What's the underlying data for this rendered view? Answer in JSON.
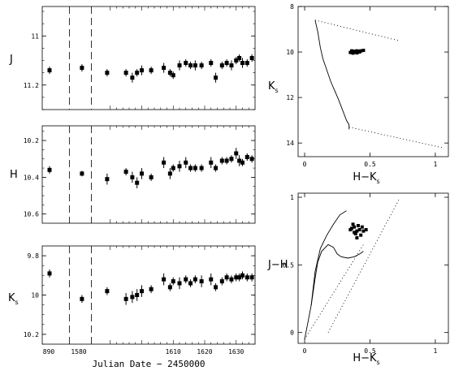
{
  "chart_data": [
    {
      "type": "scatter",
      "title": "",
      "ylabel": "J",
      "xlim": [
        888,
        1635
      ],
      "ylim": [
        11.3,
        10.88
      ],
      "y_inverted": true,
      "yticks": [
        11.0,
        11.2
      ],
      "ytick_labels": [
        "11",
        "11.2"
      ],
      "vlines_dashed": [
        1577,
        1584
      ],
      "points": [
        {
          "x": 891,
          "y": 11.14,
          "err": 0.015
        },
        {
          "x": 1581,
          "y": 11.13,
          "err": 0.015
        },
        {
          "x": 1589,
          "y": 11.15,
          "err": 0.015
        },
        {
          "x": 1595,
          "y": 11.15,
          "err": 0.015
        },
        {
          "x": 1597,
          "y": 11.17,
          "err": 0.02
        },
        {
          "x": 1598.5,
          "y": 11.15,
          "err": 0.015
        },
        {
          "x": 1600,
          "y": 11.14,
          "err": 0.02
        },
        {
          "x": 1603,
          "y": 11.14,
          "err": 0.015
        },
        {
          "x": 1607,
          "y": 11.13,
          "err": 0.02
        },
        {
          "x": 1609,
          "y": 11.15,
          "err": 0.015
        },
        {
          "x": 1610,
          "y": 11.16,
          "err": 0.015
        },
        {
          "x": 1612,
          "y": 11.12,
          "err": 0.02
        },
        {
          "x": 1614,
          "y": 11.11,
          "err": 0.015
        },
        {
          "x": 1615.5,
          "y": 11.12,
          "err": 0.015
        },
        {
          "x": 1617,
          "y": 11.12,
          "err": 0.02
        },
        {
          "x": 1619,
          "y": 11.12,
          "err": 0.015
        },
        {
          "x": 1622,
          "y": 11.11,
          "err": 0.015
        },
        {
          "x": 1623.5,
          "y": 11.17,
          "err": 0.02
        },
        {
          "x": 1625.5,
          "y": 11.12,
          "err": 0.015
        },
        {
          "x": 1627,
          "y": 11.11,
          "err": 0.015
        },
        {
          "x": 1628.5,
          "y": 11.12,
          "err": 0.02
        },
        {
          "x": 1630,
          "y": 11.1,
          "err": 0.015
        },
        {
          "x": 1631,
          "y": 11.09,
          "err": 0.015
        },
        {
          "x": 1632,
          "y": 11.11,
          "err": 0.02
        },
        {
          "x": 1633.5,
          "y": 11.11,
          "err": 0.015
        },
        {
          "x": 1635,
          "y": 11.09,
          "err": 0.015
        }
      ]
    },
    {
      "type": "scatter",
      "title": "",
      "ylabel": "H",
      "xlim": [
        888,
        1635
      ],
      "ylim": [
        10.65,
        10.12
      ],
      "y_inverted": true,
      "yticks": [
        10.2,
        10.4,
        10.6
      ],
      "ytick_labels": [
        "10.2",
        "10.4",
        "10.6"
      ],
      "vlines_dashed": [
        1577,
        1584
      ],
      "points": [
        {
          "x": 891,
          "y": 10.36,
          "err": 0.02
        },
        {
          "x": 1581,
          "y": 10.38,
          "err": 0.015
        },
        {
          "x": 1589,
          "y": 10.41,
          "err": 0.03
        },
        {
          "x": 1595,
          "y": 10.37,
          "err": 0.02
        },
        {
          "x": 1597,
          "y": 10.4,
          "err": 0.03
        },
        {
          "x": 1598.5,
          "y": 10.43,
          "err": 0.03
        },
        {
          "x": 1600,
          "y": 10.38,
          "err": 0.03
        },
        {
          "x": 1603,
          "y": 10.4,
          "err": 0.02
        },
        {
          "x": 1607,
          "y": 10.32,
          "err": 0.03
        },
        {
          "x": 1609,
          "y": 10.38,
          "err": 0.03
        },
        {
          "x": 1610,
          "y": 10.35,
          "err": 0.02
        },
        {
          "x": 1612,
          "y": 10.34,
          "err": 0.03
        },
        {
          "x": 1614,
          "y": 10.32,
          "err": 0.03
        },
        {
          "x": 1615.5,
          "y": 10.35,
          "err": 0.02
        },
        {
          "x": 1617,
          "y": 10.35,
          "err": 0.02
        },
        {
          "x": 1619,
          "y": 10.35,
          "err": 0.02
        },
        {
          "x": 1622,
          "y": 10.32,
          "err": 0.03
        },
        {
          "x": 1623.5,
          "y": 10.35,
          "err": 0.02
        },
        {
          "x": 1625.5,
          "y": 10.31,
          "err": 0.02
        },
        {
          "x": 1627,
          "y": 10.31,
          "err": 0.02
        },
        {
          "x": 1628.5,
          "y": 10.3,
          "err": 0.02
        },
        {
          "x": 1630,
          "y": 10.27,
          "err": 0.03
        },
        {
          "x": 1631,
          "y": 10.31,
          "err": 0.03
        },
        {
          "x": 1632,
          "y": 10.32,
          "err": 0.02
        },
        {
          "x": 1633.5,
          "y": 10.29,
          "err": 0.02
        },
        {
          "x": 1635,
          "y": 10.3,
          "err": 0.02
        }
      ]
    },
    {
      "type": "scatter",
      "title": "",
      "ylabel": "K",
      "ylabel_sub": "s",
      "xlabel": "Julian Date − 2450000",
      "xlim": [
        888,
        1635
      ],
      "ylim": [
        10.25,
        9.75
      ],
      "y_inverted": true,
      "yticks": [
        9.8,
        10.0,
        10.2
      ],
      "ytick_labels": [
        "9.8",
        "10",
        "10.2"
      ],
      "xticks": [
        890,
        1580,
        1610,
        1620,
        1630
      ],
      "xtick_labels": [
        "890",
        "1580",
        "1610",
        "1620",
        "1630"
      ],
      "vlines_dashed": [
        1577,
        1584
      ],
      "points": [
        {
          "x": 891,
          "y": 9.89,
          "err": 0.02
        },
        {
          "x": 1581,
          "y": 10.02,
          "err": 0.02
        },
        {
          "x": 1589,
          "y": 9.98,
          "err": 0.02
        },
        {
          "x": 1595,
          "y": 10.02,
          "err": 0.03
        },
        {
          "x": 1597,
          "y": 10.01,
          "err": 0.03
        },
        {
          "x": 1598.5,
          "y": 10.0,
          "err": 0.03
        },
        {
          "x": 1600,
          "y": 9.98,
          "err": 0.03
        },
        {
          "x": 1603,
          "y": 9.97,
          "err": 0.02
        },
        {
          "x": 1607,
          "y": 9.92,
          "err": 0.03
        },
        {
          "x": 1609,
          "y": 9.96,
          "err": 0.02
        },
        {
          "x": 1610,
          "y": 9.93,
          "err": 0.02
        },
        {
          "x": 1612,
          "y": 9.94,
          "err": 0.03
        },
        {
          "x": 1614,
          "y": 9.92,
          "err": 0.02
        },
        {
          "x": 1615.5,
          "y": 9.94,
          "err": 0.02
        },
        {
          "x": 1617,
          "y": 9.92,
          "err": 0.02
        },
        {
          "x": 1619,
          "y": 9.93,
          "err": 0.03
        },
        {
          "x": 1622,
          "y": 9.92,
          "err": 0.03
        },
        {
          "x": 1623.5,
          "y": 9.96,
          "err": 0.02
        },
        {
          "x": 1625.5,
          "y": 9.93,
          "err": 0.02
        },
        {
          "x": 1627,
          "y": 9.91,
          "err": 0.02
        },
        {
          "x": 1628.5,
          "y": 9.92,
          "err": 0.02
        },
        {
          "x": 1630,
          "y": 9.91,
          "err": 0.02
        },
        {
          "x": 1631,
          "y": 9.91,
          "err": 0.02
        },
        {
          "x": 1632,
          "y": 9.9,
          "err": 0.02
        },
        {
          "x": 1633.5,
          "y": 9.91,
          "err": 0.02
        },
        {
          "x": 1635,
          "y": 9.91,
          "err": 0.02
        }
      ]
    },
    {
      "type": "scatter",
      "title": "",
      "ylabel": "K",
      "ylabel_sub": "s",
      "xlabel": "H−K",
      "xlabel_sub": "s",
      "xlim": [
        -0.05,
        1.1
      ],
      "ylim": [
        14.6,
        8
      ],
      "y_inverted": true,
      "xticks": [
        0,
        0.5,
        1
      ],
      "xtick_labels": [
        "0",
        "0.5",
        "1"
      ],
      "yticks": [
        8,
        10,
        12,
        14
      ],
      "ytick_labels": [
        "8",
        "10",
        "12",
        "14"
      ],
      "isochrone": [
        [
          0.08,
          8.6
        ],
        [
          0.1,
          9.1
        ],
        [
          0.12,
          9.8
        ],
        [
          0.14,
          10.3
        ],
        [
          0.17,
          10.8
        ],
        [
          0.2,
          11.3
        ],
        [
          0.23,
          11.7
        ],
        [
          0.26,
          12.1
        ],
        [
          0.28,
          12.4
        ],
        [
          0.3,
          12.7
        ],
        [
          0.32,
          13.0
        ],
        [
          0.34,
          13.2
        ],
        [
          0.34,
          13.4
        ]
      ],
      "reddening_vectors": [
        [
          [
            0.08,
            8.6
          ],
          [
            0.72,
            9.5
          ]
        ],
        [
          [
            0.34,
            13.3
          ],
          [
            1.05,
            14.2
          ]
        ]
      ],
      "points": [
        {
          "x": 0.36,
          "y": 9.95
        },
        {
          "x": 0.38,
          "y": 10.0
        },
        {
          "x": 0.4,
          "y": 9.95
        },
        {
          "x": 0.42,
          "y": 10.0
        },
        {
          "x": 0.37,
          "y": 10.05
        },
        {
          "x": 0.39,
          "y": 10.0
        },
        {
          "x": 0.41,
          "y": 9.97
        },
        {
          "x": 0.35,
          "y": 10.02
        },
        {
          "x": 0.43,
          "y": 9.95
        },
        {
          "x": 0.45,
          "y": 9.93
        },
        {
          "x": 0.38,
          "y": 9.97
        },
        {
          "x": 0.4,
          "y": 10.04
        }
      ]
    },
    {
      "type": "scatter",
      "title": "",
      "ylabel": "J−H",
      "xlabel": "H−K",
      "xlabel_sub": "s",
      "xlim": [
        -0.05,
        1.1
      ],
      "ylim": [
        -0.08,
        1.03
      ],
      "xticks": [
        0,
        0.5,
        1
      ],
      "xtick_labels": [
        "0",
        "0.5",
        "1"
      ],
      "yticks": [
        0,
        0.5,
        1
      ],
      "ytick_labels": [
        "0",
        "0.5",
        "1"
      ],
      "main_sequence": [
        [
          0.0,
          -0.05
        ],
        [
          0.02,
          0.05
        ],
        [
          0.05,
          0.2
        ],
        [
          0.08,
          0.4
        ],
        [
          0.1,
          0.52
        ],
        [
          0.13,
          0.6
        ],
        [
          0.18,
          0.65
        ],
        [
          0.22,
          0.63
        ],
        [
          0.25,
          0.58
        ],
        [
          0.28,
          0.56
        ],
        [
          0.33,
          0.55
        ],
        [
          0.38,
          0.56
        ],
        [
          0.42,
          0.58
        ],
        [
          0.45,
          0.6
        ]
      ],
      "giant_branch": [
        [
          0.05,
          0.2
        ],
        [
          0.08,
          0.45
        ],
        [
          0.12,
          0.62
        ],
        [
          0.17,
          0.72
        ],
        [
          0.22,
          0.8
        ],
        [
          0.27,
          0.87
        ],
        [
          0.32,
          0.9
        ]
      ],
      "reddening_band": [
        [
          [
            0.0,
            -0.05
          ],
          [
            0.45,
            0.65
          ]
        ],
        [
          [
            0.18,
            0.0
          ],
          [
            0.72,
            0.98
          ]
        ]
      ],
      "points": [
        {
          "x": 0.36,
          "y": 0.77
        },
        {
          "x": 0.38,
          "y": 0.78
        },
        {
          "x": 0.4,
          "y": 0.75
        },
        {
          "x": 0.42,
          "y": 0.76
        },
        {
          "x": 0.37,
          "y": 0.8
        },
        {
          "x": 0.39,
          "y": 0.73
        },
        {
          "x": 0.41,
          "y": 0.79
        },
        {
          "x": 0.35,
          "y": 0.76
        },
        {
          "x": 0.43,
          "y": 0.72
        },
        {
          "x": 0.45,
          "y": 0.75
        },
        {
          "x": 0.38,
          "y": 0.74
        },
        {
          "x": 0.4,
          "y": 0.7
        },
        {
          "x": 0.47,
          "y": 0.76
        },
        {
          "x": 0.44,
          "y": 0.78
        }
      ]
    }
  ]
}
